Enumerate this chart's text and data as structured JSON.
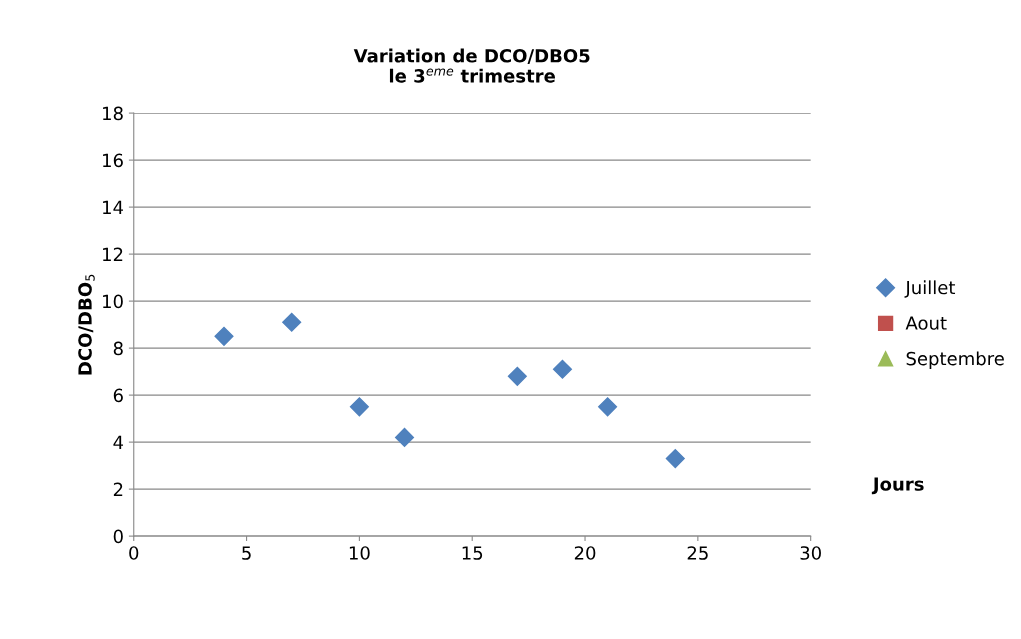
{
  "chart_data": {
    "type": "scatter",
    "title": "Variation de DCO/DBO5\nle 3$^{eme}$ trimestre",
    "xlabel": "Jours",
    "ylabel": "DCO/DBO$_{5}$",
    "series": [
      {
        "name": "Juillet",
        "color": "#4f81bd",
        "marker": "diamond",
        "x": [
          4,
          7,
          10,
          12,
          17,
          19,
          21,
          24
        ],
        "values": [
          8.5,
          9.1,
          5.5,
          4.2,
          6.8,
          7.1,
          5.5,
          3.3
        ]
      },
      {
        "name": "Aout",
        "color": "#c0504d",
        "marker": "square"
      },
      {
        "name": "Septembre",
        "color": "#9bbb59",
        "marker": "triangle"
      }
    ],
    "xlim": [
      0,
      30
    ],
    "xticks": [
      0,
      5,
      10,
      15,
      20,
      25,
      30
    ],
    "ylim": [
      0,
      18
    ],
    "yticks": [
      0,
      2,
      4,
      6,
      8,
      10,
      12,
      14,
      16,
      18
    ],
    "grid": "y",
    "legend": "right"
  }
}
